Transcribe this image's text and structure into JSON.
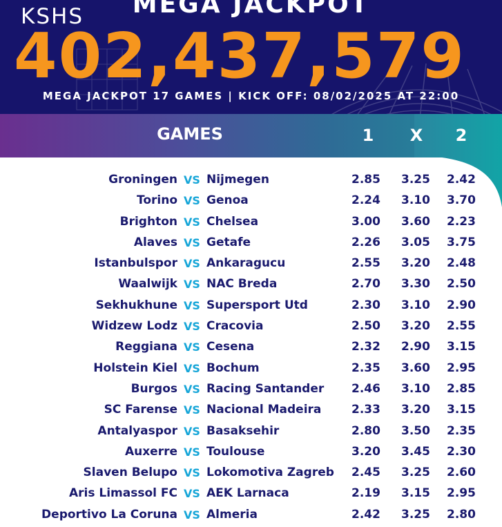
{
  "header": {
    "title": "MEGA JACKPOT",
    "currency": "KSHS",
    "amount": "402,437,579",
    "subtitle": "MEGA JACKPOT 17 GAMES | KICK OFF: 08/02/2025 AT 22:00"
  },
  "table": {
    "games_header": "GAMES",
    "col1": "1",
    "colx": "X",
    "col2": "2",
    "vs_label": "VS",
    "matches": [
      {
        "home": "Groningen",
        "away": "Nijmegen",
        "o1": "2.85",
        "ox": "3.25",
        "o2": "2.42"
      },
      {
        "home": "Torino",
        "away": "Genoa",
        "o1": "2.24",
        "ox": "3.10",
        "o2": "3.70"
      },
      {
        "home": "Brighton",
        "away": "Chelsea",
        "o1": "3.00",
        "ox": "3.60",
        "o2": "2.23"
      },
      {
        "home": "Alaves",
        "away": "Getafe",
        "o1": "2.26",
        "ox": "3.05",
        "o2": "3.75"
      },
      {
        "home": "Istanbulspor",
        "away": "Ankaragucu",
        "o1": "2.55",
        "ox": "3.20",
        "o2": "2.48"
      },
      {
        "home": "Waalwijk",
        "away": "NAC Breda",
        "o1": "2.70",
        "ox": "3.30",
        "o2": "2.50"
      },
      {
        "home": "Sekhukhune",
        "away": "Supersport Utd",
        "o1": "2.30",
        "ox": "3.10",
        "o2": "2.90"
      },
      {
        "home": "Widzew Lodz",
        "away": "Cracovia",
        "o1": "2.50",
        "ox": "3.20",
        "o2": "2.55"
      },
      {
        "home": "Reggiana",
        "away": "Cesena",
        "o1": "2.32",
        "ox": "2.90",
        "o2": "3.15"
      },
      {
        "home": "Holstein Kiel",
        "away": "Bochum",
        "o1": "2.35",
        "ox": "3.60",
        "o2": "2.95"
      },
      {
        "home": "Burgos",
        "away": "Racing Santander",
        "o1": "2.46",
        "ox": "3.10",
        "o2": "2.85"
      },
      {
        "home": "SC Farense",
        "away": "Nacional Madeira",
        "o1": "2.33",
        "ox": "3.20",
        "o2": "3.15"
      },
      {
        "home": "Antalyaspor",
        "away": "Basaksehir",
        "o1": "2.80",
        "ox": "3.50",
        "o2": "2.35"
      },
      {
        "home": "Auxerre",
        "away": "Toulouse",
        "o1": "3.20",
        "ox": "3.45",
        "o2": "2.30"
      },
      {
        "home": "Slaven Belupo",
        "away": "Lokomotiva Zagreb",
        "o1": "2.45",
        "ox": "3.25",
        "o2": "2.60"
      },
      {
        "home": "Aris Limassol FC",
        "away": "AEK Larnaca",
        "o1": "2.19",
        "ox": "3.15",
        "o2": "2.95"
      },
      {
        "home": "Deportivo La Coruna",
        "away": "Almeria",
        "o1": "2.42",
        "ox": "3.25",
        "o2": "2.80"
      }
    ]
  },
  "colors": {
    "header_bg": "#16146b",
    "amount": "#f6961e",
    "vs": "#17a6d8",
    "team_text": "#1a1a6e",
    "gradient_start": "#6a2f8f",
    "gradient_end": "#1f8f9c"
  }
}
